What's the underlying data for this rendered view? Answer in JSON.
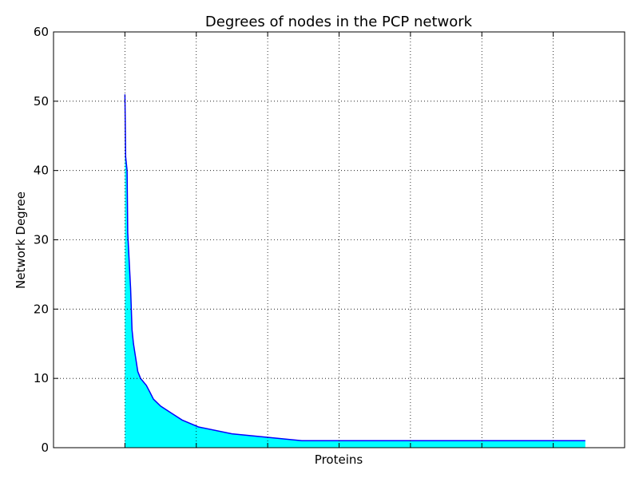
{
  "chart_data": {
    "type": "area",
    "title": "Degrees of nodes in the PCP network",
    "xlabel": "Proteins",
    "ylabel": "Network Degree",
    "ylim": [
      0,
      60
    ],
    "yticks": [
      "0",
      "10",
      "20",
      "30",
      "40",
      "50",
      "60"
    ],
    "xlim": [
      -100,
      700
    ],
    "x_tick_labels_shown": false,
    "grid": true,
    "series": [
      {
        "line_color": "#0000ff",
        "fill_color": "#00ffff",
        "points": [
          [
            0,
            51
          ],
          [
            0.5,
            47
          ],
          [
            1,
            42
          ],
          [
            3,
            40
          ],
          [
            4,
            31
          ],
          [
            5,
            29
          ],
          [
            8,
            23
          ],
          [
            10,
            17
          ],
          [
            12,
            15
          ],
          [
            15,
            13
          ],
          [
            18,
            11
          ],
          [
            22,
            10
          ],
          [
            30,
            9
          ],
          [
            35,
            8
          ],
          [
            40,
            7
          ],
          [
            50,
            6
          ],
          [
            65,
            5
          ],
          [
            80,
            4
          ],
          [
            103,
            3
          ],
          [
            150,
            2
          ],
          [
            248,
            1
          ],
          [
            645,
            1
          ]
        ]
      }
    ]
  }
}
